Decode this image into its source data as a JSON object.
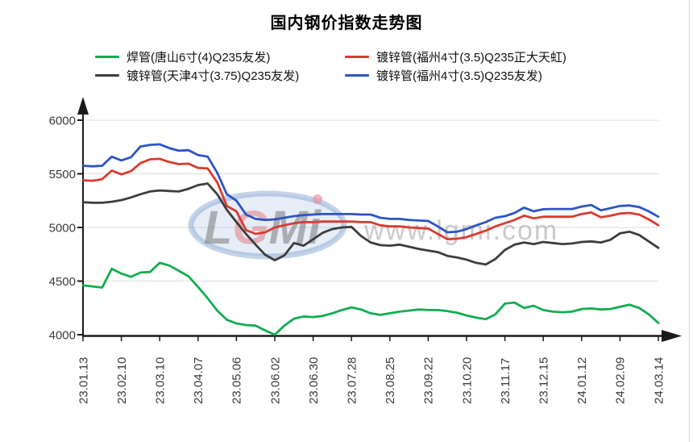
{
  "page": {
    "background": "#ffffff"
  },
  "chart_data": {
    "type": "line",
    "title": "国内钢价指数走势图",
    "xlabel": "",
    "ylabel": "",
    "ylim": [
      4000,
      6000
    ],
    "y_ticks": [
      4000,
      4500,
      5000,
      5500,
      6000
    ],
    "grid": "horizontal gridlines at 4500/5000/5500/6000, axes with arrowheads",
    "legend_position": "top, two columns",
    "x_ticklabels": [
      "23.01.13",
      "23.02.10",
      "23.03.10",
      "23.04.07",
      "23.05.06",
      "23.06.02",
      "23.06.30",
      "23.07.28",
      "23.08.25",
      "23.09.22",
      "23.10.20",
      "23.11.17",
      "23.12.15",
      "24.01.12",
      "24.02.09",
      "24.03.14"
    ],
    "x_tick_indices": [
      0,
      4,
      8,
      12,
      16,
      20,
      24,
      28,
      32,
      36,
      40,
      44,
      48,
      52,
      56,
      60
    ],
    "sampling_note": "weekly data points, one tick label every 4 points",
    "series": [
      {
        "name": "焊管(唐山6寸(4)Q235友发)",
        "color": "#12ad4f",
        "values": [
          4460,
          4450,
          4440,
          4615,
          4570,
          4540,
          4580,
          4585,
          4670,
          4645,
          4595,
          4545,
          4445,
          4340,
          4225,
          4140,
          4105,
          4090,
          4085,
          4040,
          4000,
          4085,
          4150,
          4170,
          4165,
          4175,
          4200,
          4230,
          4255,
          4235,
          4200,
          4185,
          4200,
          4215,
          4225,
          4235,
          4230,
          4230,
          4220,
          4205,
          4180,
          4160,
          4145,
          4190,
          4290,
          4300,
          4250,
          4270,
          4230,
          4215,
          4210,
          4215,
          4240,
          4245,
          4235,
          4240,
          4260,
          4280,
          4250,
          4190,
          4110
        ]
      },
      {
        "name": "镀锌管(天津4寸(3.75)Q235友发)",
        "color": "#3d3d3d",
        "values": [
          5235,
          5230,
          5230,
          5240,
          5255,
          5280,
          5310,
          5335,
          5345,
          5340,
          5335,
          5360,
          5395,
          5410,
          5310,
          5165,
          5050,
          4940,
          4840,
          4745,
          4695,
          4740,
          4855,
          4830,
          4890,
          4950,
          4985,
          5000,
          5005,
          4920,
          4860,
          4835,
          4830,
          4840,
          4820,
          4800,
          4785,
          4770,
          4735,
          4720,
          4700,
          4670,
          4655,
          4705,
          4790,
          4840,
          4860,
          4845,
          4865,
          4855,
          4845,
          4850,
          4865,
          4870,
          4860,
          4885,
          4945,
          4960,
          4930,
          4870,
          4810
        ]
      },
      {
        "name": "镀锌管(福州4寸(3.5)Q235正大天虹)",
        "color": "#d93b31",
        "values": [
          5440,
          5435,
          5450,
          5530,
          5495,
          5525,
          5600,
          5635,
          5640,
          5610,
          5590,
          5595,
          5555,
          5550,
          5420,
          5200,
          5150,
          4975,
          4940,
          4955,
          5000,
          5020,
          5040,
          5050,
          5050,
          5055,
          5055,
          5055,
          5055,
          5050,
          5050,
          5020,
          5010,
          5010,
          5000,
          4995,
          4990,
          4940,
          4890,
          4895,
          4910,
          4940,
          4970,
          5010,
          5040,
          5070,
          5110,
          5085,
          5100,
          5100,
          5100,
          5100,
          5125,
          5140,
          5095,
          5110,
          5130,
          5135,
          5120,
          5075,
          5020
        ]
      },
      {
        "name": "镀锌管(福州4寸(3.5)Q235友发)",
        "color": "#2c55c4",
        "values": [
          5575,
          5570,
          5575,
          5660,
          5625,
          5655,
          5755,
          5770,
          5775,
          5740,
          5715,
          5720,
          5675,
          5660,
          5510,
          5310,
          5250,
          5120,
          5080,
          5070,
          5075,
          5090,
          5105,
          5115,
          5120,
          5125,
          5125,
          5125,
          5125,
          5120,
          5120,
          5090,
          5080,
          5080,
          5070,
          5065,
          5060,
          5010,
          4955,
          4960,
          4985,
          5020,
          5050,
          5090,
          5105,
          5135,
          5185,
          5150,
          5170,
          5172,
          5172,
          5172,
          5195,
          5210,
          5160,
          5180,
          5200,
          5205,
          5190,
          5150,
          5100
        ]
      }
    ],
    "watermark": {
      "logo_text": "LGMi",
      "url_text": "www.lgmi.com"
    }
  }
}
